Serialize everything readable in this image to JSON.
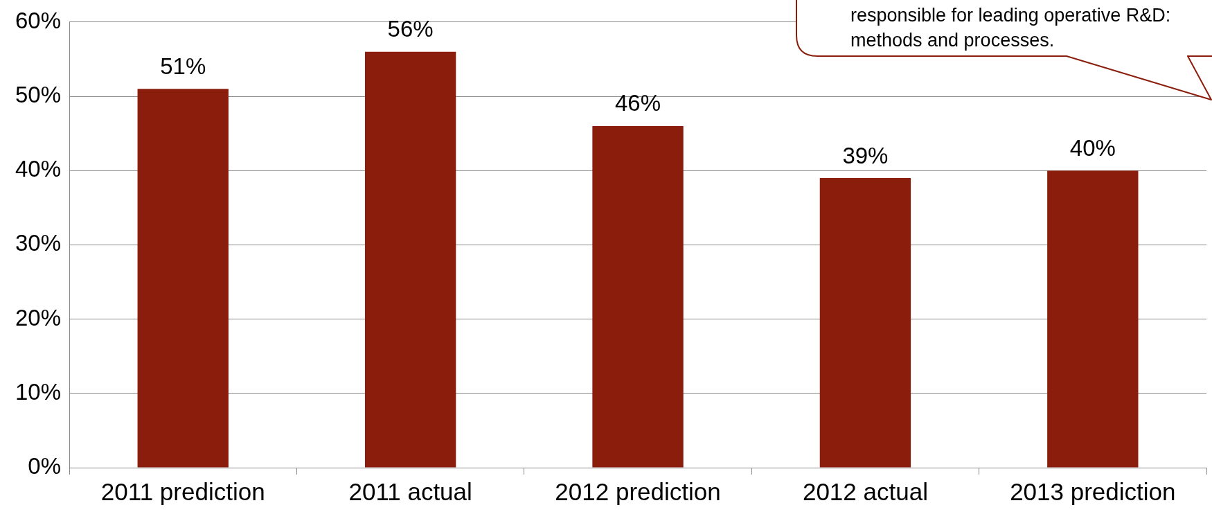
{
  "chart_data": {
    "type": "bar",
    "categories": [
      "2011 prediction",
      "2011 actual",
      "2012 prediction",
      "2012 actual",
      "2013 prediction"
    ],
    "values": [
      51,
      56,
      46,
      39,
      40
    ],
    "value_labels": [
      "51%",
      "56%",
      "46%",
      "39%",
      "40%"
    ],
    "color": "#8b1d0c",
    "ylim": [
      0,
      60
    ],
    "yticks": [
      {
        "value": 0,
        "label": "0%"
      },
      {
        "value": 10,
        "label": "10%"
      },
      {
        "value": 20,
        "label": "20%"
      },
      {
        "value": 30,
        "label": "30%"
      },
      {
        "value": 40,
        "label": "40%"
      },
      {
        "value": 50,
        "label": "50%"
      },
      {
        "value": 60,
        "label": "60%"
      }
    ],
    "grid": "y",
    "legend": false,
    "annotations": [
      "responsible for leading operative R&D: methods and processes."
    ]
  }
}
